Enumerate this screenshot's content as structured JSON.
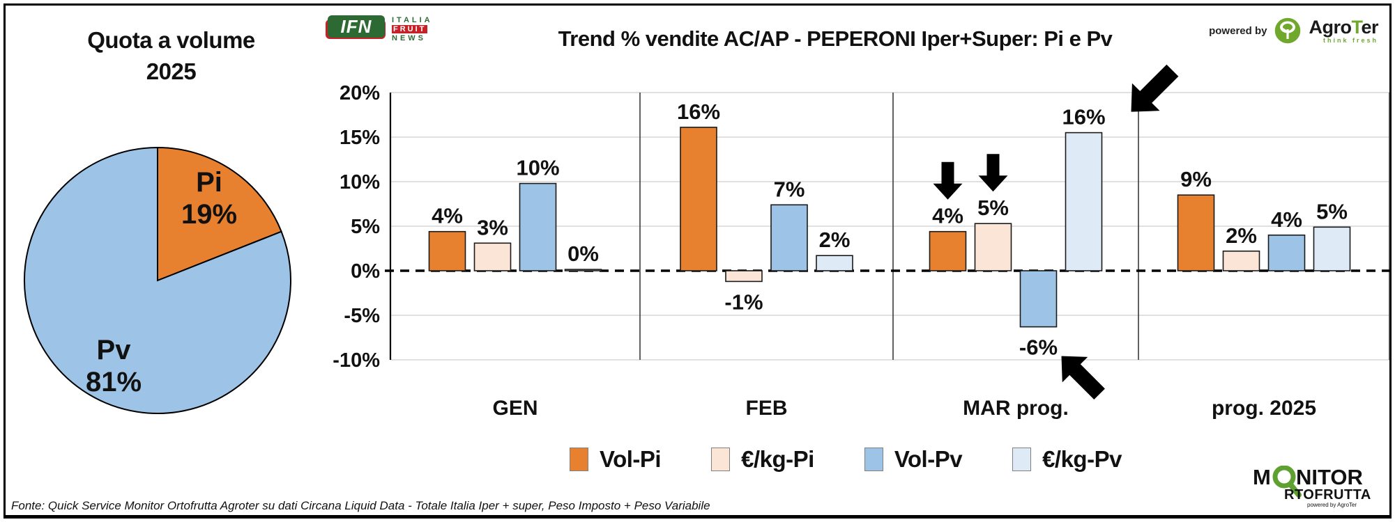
{
  "header": {
    "title": "Trend % vendite  AC/AP - PEPERONI  Iper+Super: Pi e Pv",
    "powered_by": "powered by",
    "agroter": {
      "name_pre": "Agro",
      "name_t": "T",
      "name_post": "er",
      "tagline": "think fresh"
    },
    "ifn_logo": {
      "abbr": "IFN",
      "line1": "ITALIA",
      "line2": "FRUIT",
      "line3": "NEWS"
    }
  },
  "pie_panel": {
    "title_line1": "Quota a volume",
    "title_line2": "2025"
  },
  "legend": {
    "items": [
      "Vol-Pi",
      "€/kg-Pi",
      "Vol-Pv",
      "€/kg-Pv"
    ]
  },
  "footer": {
    "source": "Fonte: Quick Service Monitor Ortofrutta Agroter su dati Circana Liquid Data - Totale Italia Iper + super, Peso Imposto + Peso Variabile"
  },
  "monitor_logo": {
    "line1_pre": "M",
    "line1_post": "NITOR",
    "line2": "RTOFRUTTA",
    "powered": "powered by",
    "brand": "AgroTer"
  },
  "colors": {
    "vol_pi": "#E8812F",
    "eur_kg_pi": "#FBE5D6",
    "vol_pv": "#9DC3E6",
    "eur_kg_pv": "#DEEBF7",
    "gridline": "#D6D6D6",
    "green_brand": "#6FA82D",
    "ifn_green": "#2D6A33",
    "ifn_red": "#C52127"
  },
  "chart_data": [
    {
      "type": "pie",
      "title": "Quota a volume 2025",
      "labels": [
        "Pi",
        "Pv"
      ],
      "values": [
        19,
        81
      ],
      "display": [
        "19%",
        "81%"
      ],
      "colors": [
        "#E8812F",
        "#9DC3E6"
      ],
      "start_angle_deg": -90,
      "direction": "clockwise"
    },
    {
      "type": "bar",
      "title": "Trend % vendite  AC/AP - PEPERONI  Iper+Super: Pi e Pv",
      "categories": [
        "GEN",
        "FEB",
        "MAR prog.",
        "prog. 2025"
      ],
      "series": [
        {
          "name": "Vol-Pi",
          "color": "#E8812F",
          "values": [
            4,
            16,
            4,
            9
          ],
          "labels": [
            "4%",
            "16%",
            "4%",
            "9%"
          ],
          "plot_values": [
            4.4,
            16.1,
            4.4,
            8.5
          ]
        },
        {
          "name": "€/kg-Pi",
          "color": "#FBE5D6",
          "values": [
            3,
            -1,
            5,
            2
          ],
          "labels": [
            "3%",
            "-1%",
            "5%",
            "2%"
          ],
          "plot_values": [
            3.1,
            -1.2,
            5.3,
            2.2
          ]
        },
        {
          "name": "Vol-Pv",
          "color": "#9DC3E6",
          "values": [
            10,
            7,
            -6,
            4
          ],
          "labels": [
            "10%",
            "7%",
            "-6%",
            "4%"
          ],
          "plot_values": [
            9.8,
            7.4,
            -6.3,
            4.0
          ]
        },
        {
          "name": "€/kg-Pv",
          "color": "#DEEBF7",
          "values": [
            0,
            2,
            16,
            5
          ],
          "labels": [
            "0%",
            "2%",
            "16%",
            "5%"
          ],
          "plot_values": [
            0.15,
            1.7,
            15.5,
            4.9
          ]
        }
      ],
      "ylim": [
        -10,
        20
      ],
      "ytick_values": [
        20,
        15,
        10,
        5,
        0,
        -5,
        -10
      ],
      "yticks": [
        "20%",
        "15%",
        "10%",
        "5%",
        "0%",
        "-5%",
        "-10%"
      ],
      "grid": true,
      "zero_line_dashed": true,
      "legend_position": "bottom",
      "annotations": [
        {
          "shape": "small-down-arrow",
          "category": "MAR prog.",
          "series": "Vol-Pi",
          "meaning": "decline highlight"
        },
        {
          "shape": "small-down-arrow",
          "category": "MAR prog.",
          "series": "€/kg-Pi",
          "meaning": "decline highlight"
        },
        {
          "shape": "big-arrow-down-left",
          "category": "MAR prog.",
          "series": "€/kg-Pv",
          "meaning": "points at 16%"
        },
        {
          "shape": "big-arrow-up-left",
          "category": "MAR prog.",
          "series": "Vol-Pv",
          "meaning": "points at -6%"
        }
      ]
    }
  ]
}
